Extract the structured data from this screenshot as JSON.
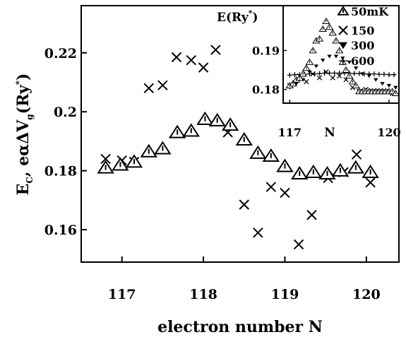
{
  "chart_data": [
    {
      "type": "scatter",
      "xlabel": "electron number N",
      "ylabel": "E_C, eαΔV_g(Ry*)",
      "ylabel_parts": {
        "base": "E",
        "sub1": "C",
        "mid": ", eαΔV",
        "sub2": "g",
        "paren_open": "(Ry",
        "sup": "*",
        "paren_close": ")"
      },
      "xlim": [
        116.5,
        120.4
      ],
      "ylim": [
        0.149,
        0.236
      ],
      "x_ticks": [
        117,
        118,
        119,
        120
      ],
      "x_tick_labels": [
        "117",
        "118",
        "119",
        "120"
      ],
      "y_ticks": [
        0.16,
        0.18,
        0.2,
        0.22
      ],
      "y_tick_labels": [
        "0.16",
        "0.18",
        "0.2",
        "0.22"
      ],
      "series": [
        {
          "marker": "cross",
          "x": [
            116.8,
            117.0,
            117.15,
            117.33,
            117.5,
            117.67,
            117.85,
            118.0,
            118.15,
            118.3,
            118.5,
            118.67,
            118.83,
            119.0,
            119.17,
            119.33,
            119.53,
            119.72,
            119.88,
            120.05
          ],
          "y": [
            0.184,
            0.1835,
            0.183,
            0.208,
            0.209,
            0.2185,
            0.2175,
            0.215,
            0.221,
            0.193,
            0.1685,
            0.159,
            0.1745,
            0.1725,
            0.155,
            0.165,
            0.1775,
            0.1795,
            0.1855,
            0.176
          ]
        },
        {
          "marker": "open-triangle",
          "x": [
            116.8,
            116.98,
            117.15,
            117.33,
            117.5,
            117.68,
            117.85,
            118.02,
            118.17,
            118.33,
            118.5,
            118.67,
            118.83,
            119.0,
            119.18,
            119.35,
            119.52,
            119.68,
            119.87,
            120.05
          ],
          "y": [
            0.181,
            0.182,
            0.183,
            0.1865,
            0.1875,
            0.193,
            0.1935,
            0.1975,
            0.197,
            0.1955,
            0.1905,
            0.186,
            0.185,
            0.1815,
            0.179,
            0.1795,
            0.179,
            0.18,
            0.181,
            0.1795
          ]
        }
      ]
    },
    {
      "type": "scatter",
      "title": "E(Ry*)",
      "title_parts": {
        "main": "E(Ry",
        "sup": "*",
        "close": ")"
      },
      "xlabel": "N",
      "xlim": [
        116.8,
        120.3
      ],
      "ylim": [
        0.1765,
        0.2015
      ],
      "x_ticks": [
        117,
        120
      ],
      "x_tick_labels": [
        "117",
        "120"
      ],
      "y_ticks": [
        0.18,
        0.19
      ],
      "y_tick_labels": [
        "0.18",
        "0.19"
      ],
      "legend_position": "top-right",
      "series": [
        {
          "name": "50mK",
          "marker": "open-triangle",
          "x": [
            117.0,
            117.1,
            117.2,
            117.3,
            117.4,
            117.5,
            117.6,
            117.7,
            117.8,
            117.9,
            118.0,
            118.1,
            118.2,
            118.3,
            118.4,
            118.5,
            118.6,
            118.7,
            118.8,
            118.9,
            119.0,
            119.1,
            119.2,
            119.3,
            119.4,
            119.5,
            119.6,
            119.7,
            119.8,
            119.9,
            120.0,
            120.1,
            120.2
          ],
          "y": [
            0.181,
            0.1815,
            0.1825,
            0.183,
            0.184,
            0.1855,
            0.187,
            0.19,
            0.1925,
            0.193,
            0.1955,
            0.1975,
            0.196,
            0.1945,
            0.1925,
            0.19,
            0.187,
            0.185,
            0.1835,
            0.182,
            0.181,
            0.1795,
            0.1795,
            0.1795,
            0.1795,
            0.1795,
            0.1795,
            0.1795,
            0.1795,
            0.1795,
            0.1795,
            0.1795,
            0.179
          ]
        },
        {
          "name": "150",
          "marker": "cross",
          "x": [
            117.0,
            117.3,
            117.5,
            117.7,
            117.9,
            118.1,
            118.3,
            118.5,
            118.7,
            118.9,
            119.1,
            119.3,
            119.5,
            119.7,
            119.9,
            120.1
          ],
          "y": [
            0.181,
            0.1835,
            0.182,
            0.184,
            0.183,
            0.1845,
            0.183,
            0.1835,
            0.1825,
            0.1805,
            0.1795,
            0.18,
            0.1795,
            0.1795,
            0.1795,
            0.179
          ]
        },
        {
          "name": "300",
          "marker": "filled-down-triangle",
          "x": [
            117.0,
            117.2,
            117.4,
            117.6,
            117.8,
            118.0,
            118.2,
            118.4,
            118.6,
            118.8,
            119.0,
            119.2,
            119.4,
            119.6,
            119.8,
            120.0,
            120.2
          ],
          "y": [
            0.1805,
            0.1815,
            0.1825,
            0.1845,
            0.186,
            0.1875,
            0.1885,
            0.1885,
            0.188,
            0.187,
            0.1855,
            0.184,
            0.1835,
            0.1825,
            0.1815,
            0.181,
            0.1805
          ]
        },
        {
          "name": "600",
          "marker": "plus",
          "x": [
            117.0,
            117.15,
            117.3,
            117.45,
            117.6,
            117.75,
            117.9,
            118.05,
            118.2,
            118.35,
            118.5,
            118.65,
            118.8,
            118.95,
            119.1,
            119.25,
            119.4,
            119.55,
            119.7,
            119.85,
            120.0,
            120.15
          ],
          "y": [
            0.1837,
            0.1838,
            0.1838,
            0.1839,
            0.184,
            0.184,
            0.1841,
            0.1842,
            0.1842,
            0.1842,
            0.1842,
            0.1842,
            0.1842,
            0.1841,
            0.1841,
            0.184,
            0.184,
            0.184,
            0.1839,
            0.1839,
            0.1838,
            0.1838
          ]
        }
      ]
    }
  ]
}
